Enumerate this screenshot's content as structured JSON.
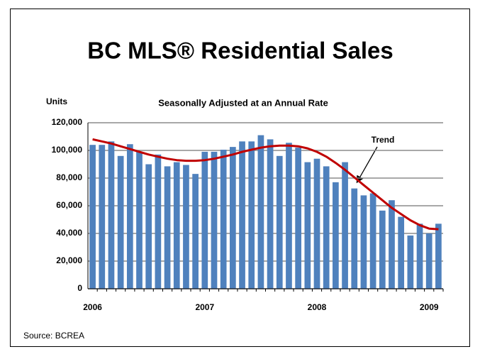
{
  "chart_data": {
    "type": "bar",
    "title": "BC MLS® Residential Sales",
    "subtitle": "Seasonally Adjusted at an Annual Rate",
    "y_label": "Units",
    "source": "Source: BCREA",
    "annotation": "Trend",
    "categories": [
      "2006",
      null,
      null,
      null,
      null,
      null,
      null,
      null,
      null,
      null,
      null,
      null,
      "2007",
      null,
      null,
      null,
      null,
      null,
      null,
      null,
      null,
      null,
      null,
      null,
      "2008",
      null,
      null,
      null,
      null,
      null,
      null,
      null,
      null,
      null,
      null,
      null,
      "2009",
      null
    ],
    "values": [
      104000,
      104000,
      106500,
      96000,
      104500,
      99000,
      90000,
      97000,
      88500,
      91500,
      89500,
      83000,
      99000,
      99000,
      100500,
      102500,
      106500,
      106500,
      111000,
      108000,
      96000,
      105500,
      102000,
      91500,
      94000,
      88500,
      77000,
      91500,
      72500,
      67500,
      69000,
      56500,
      64000,
      52000,
      38500,
      47000,
      40000,
      47000
    ],
    "color": "#4f81bd",
    "trend": {
      "color": "#c00000",
      "values": [
        108000,
        106500,
        105000,
        103000,
        101000,
        99000,
        97000,
        95500,
        94000,
        93000,
        92500,
        92500,
        93000,
        94000,
        95500,
        97000,
        99000,
        100500,
        102000,
        103000,
        103500,
        103500,
        103000,
        101500,
        99000,
        95500,
        91000,
        86000,
        80500,
        75000,
        69500,
        64000,
        58500,
        54000,
        49500,
        46000,
        43500,
        43000
      ]
    },
    "ylim": [
      0,
      120000
    ],
    "yticks": [
      0,
      {
        "value": 20000,
        "label": "20,000"
      },
      {
        "value": 40000,
        "label": "40,000"
      },
      {
        "value": 60000,
        "label": "60,000"
      },
      {
        "value": 80000,
        "label": "80,000"
      },
      {
        "value": 100000,
        "label": "100,000"
      },
      {
        "value": 120000,
        "label": "120,000"
      }
    ],
    "grid": true
  }
}
